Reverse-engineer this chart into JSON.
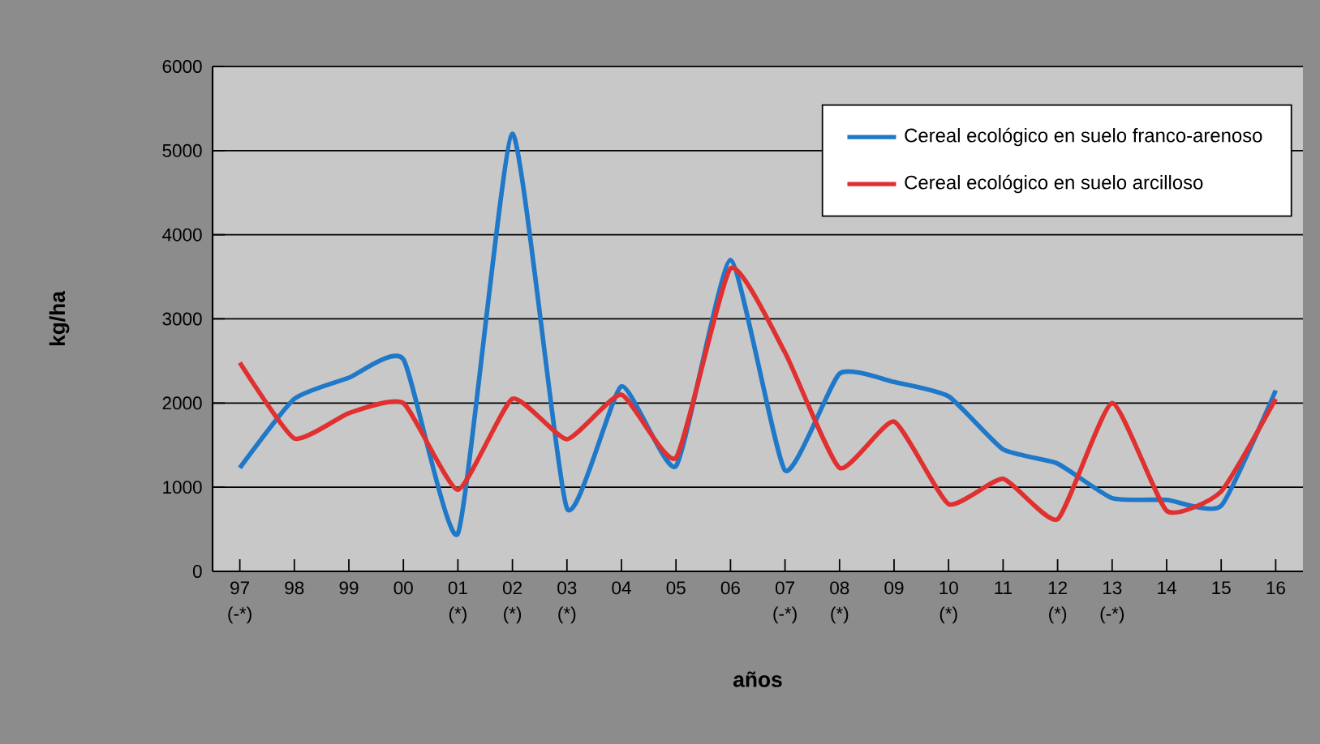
{
  "chart_data": {
    "type": "line",
    "xlabel": "años",
    "ylabel": "kg/ha",
    "categories": [
      "97 (-*)",
      "98",
      "99",
      "00",
      "01 (*)",
      "02 (*)",
      "03 (*)",
      "04",
      "05",
      "06",
      "07 (-*)",
      "08 (*)",
      "09",
      "10 (*)",
      "11",
      "12 (*)",
      "13 (-*)",
      "14",
      "15",
      "16"
    ],
    "series": [
      {
        "name": "Cereal ecológico en suelo franco-arenoso",
        "color": "#1f78c8",
        "values": [
          1230,
          2050,
          2300,
          2520,
          450,
          5200,
          750,
          2200,
          1250,
          3700,
          1200,
          2350,
          2250,
          2080,
          1450,
          1280,
          870,
          850,
          780,
          2150
        ]
      },
      {
        "name": "Cereal ecológico en suelo arcilloso",
        "color": "#e03030",
        "values": [
          2480,
          1580,
          1880,
          2000,
          970,
          2050,
          1570,
          2100,
          1350,
          3600,
          2600,
          1230,
          1780,
          800,
          1100,
          620,
          2000,
          720,
          950,
          2050
        ]
      }
    ],
    "ylim": [
      0,
      6000
    ],
    "yticks": [
      0,
      1000,
      2000,
      3000,
      4000,
      5000,
      6000
    ],
    "grid": "y",
    "legend": "top right",
    "marker": "none",
    "line_style": "solid"
  }
}
